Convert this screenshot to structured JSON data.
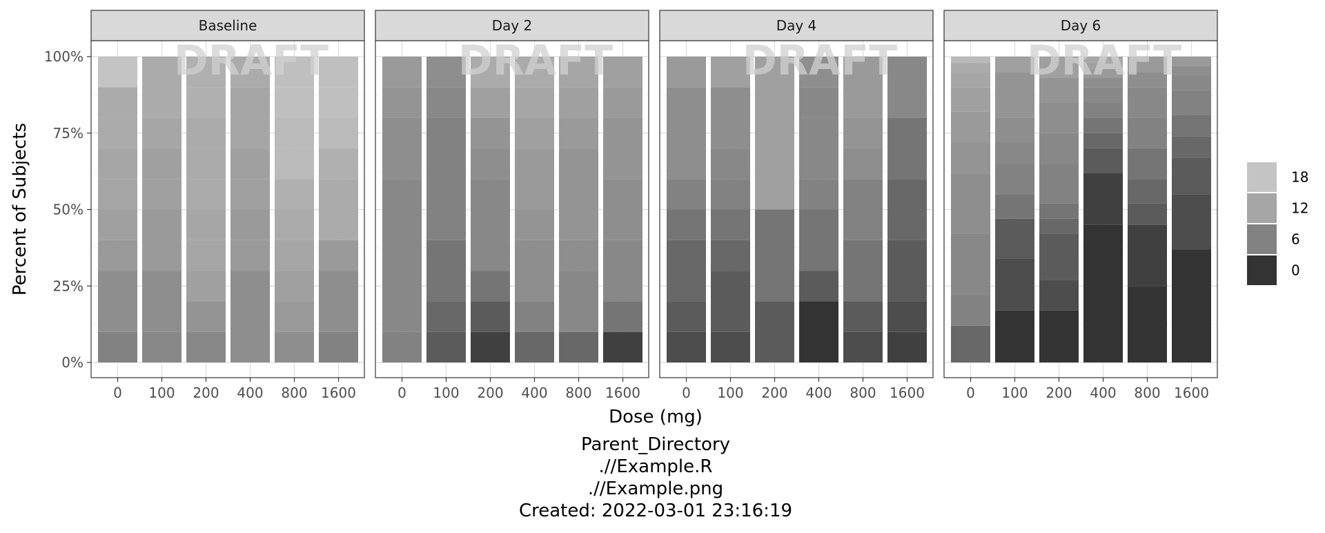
{
  "chart_data": {
    "type": "bar",
    "subtype": "stacked-percent-faceted",
    "facets": [
      "Baseline",
      "Day 2",
      "Day 4",
      "Day 6"
    ],
    "categories": [
      "0",
      "100",
      "200",
      "400",
      "800",
      "1600"
    ],
    "xlabel": "Dose (mg)",
    "ylabel": "Percent of Subjects",
    "ylim": [
      0,
      1
    ],
    "yticks": [
      0,
      0.25,
      0.5,
      0.75,
      1.0
    ],
    "ytick_labels": [
      "0%",
      "25%",
      "50%",
      "75%",
      "100%"
    ],
    "grid": true,
    "legend": {
      "placement": "right",
      "scale_min": 0,
      "scale_max": 20,
      "entries": [
        {
          "label": "18",
          "value": 18,
          "color": "#C4C4C4"
        },
        {
          "label": "12",
          "value": 12,
          "color": "#A6A6A6"
        },
        {
          "label": "6",
          "value": 6,
          "color": "#828282"
        },
        {
          "label": "0",
          "value": 0,
          "color": "#333333"
        }
      ]
    },
    "watermark": "DRAFT",
    "bars": [
      [
        [
          {
            "value": 6,
            "share": 0.1
          },
          {
            "value": 8,
            "share": 0.2
          },
          {
            "value": 10,
            "share": 0.1
          },
          {
            "value": 11,
            "share": 0.1
          },
          {
            "value": 12,
            "share": 0.1
          },
          {
            "value": 12,
            "share": 0.1
          },
          {
            "value": 13,
            "share": 0.1
          },
          {
            "value": 13,
            "share": 0.1
          },
          {
            "value": 18,
            "share": 0.1
          }
        ],
        [
          {
            "value": 7,
            "share": 0.1
          },
          {
            "value": 8,
            "share": 0.2
          },
          {
            "value": 10,
            "share": 0.2
          },
          {
            "value": 11,
            "share": 0.1
          },
          {
            "value": 11,
            "share": 0.1
          },
          {
            "value": 12,
            "share": 0.1
          },
          {
            "value": 13,
            "share": 0.2
          }
        ],
        [
          {
            "value": 7,
            "share": 0.1
          },
          {
            "value": 9,
            "share": 0.1
          },
          {
            "value": 11,
            "share": 0.1
          },
          {
            "value": 12,
            "share": 0.1
          },
          {
            "value": 12,
            "share": 0.1
          },
          {
            "value": 13,
            "share": 0.1
          },
          {
            "value": 13,
            "share": 0.1
          },
          {
            "value": 13,
            "share": 0.1
          },
          {
            "value": 14,
            "share": 0.1
          },
          {
            "value": 14,
            "share": 0.1
          }
        ],
        [
          {
            "value": 8,
            "share": 0.3
          },
          {
            "value": 10,
            "share": 0.1
          },
          {
            "value": 10,
            "share": 0.1
          },
          {
            "value": 11,
            "share": 0.1
          },
          {
            "value": 11,
            "share": 0.1
          },
          {
            "value": 12,
            "share": 0.1
          },
          {
            "value": 12,
            "share": 0.1
          },
          {
            "value": 13,
            "share": 0.1
          }
        ],
        [
          {
            "value": 8,
            "share": 0.1
          },
          {
            "value": 10,
            "share": 0.1
          },
          {
            "value": 11,
            "share": 0.1
          },
          {
            "value": 12,
            "share": 0.1
          },
          {
            "value": 13,
            "share": 0.1
          },
          {
            "value": 14,
            "share": 0.1
          },
          {
            "value": 16,
            "share": 0.1
          },
          {
            "value": 16,
            "share": 0.1
          },
          {
            "value": 17,
            "share": 0.1
          },
          {
            "value": 17,
            "share": 0.1
          }
        ],
        [
          {
            "value": 6,
            "share": 0.1
          },
          {
            "value": 8,
            "share": 0.2
          },
          {
            "value": 10,
            "share": 0.1
          },
          {
            "value": 13,
            "share": 0.1
          },
          {
            "value": 13,
            "share": 0.1
          },
          {
            "value": 14,
            "share": 0.1
          },
          {
            "value": 16,
            "share": 0.1
          },
          {
            "value": 17,
            "share": 0.1
          },
          {
            "value": 17,
            "share": 0.1
          }
        ]
      ],
      [
        [
          {
            "value": 6,
            "share": 0.1
          },
          {
            "value": 7,
            "share": 0.5
          },
          {
            "value": 8,
            "share": 0.2
          },
          {
            "value": 9,
            "share": 0.1
          },
          {
            "value": 10,
            "share": 0.1
          }
        ],
        [
          {
            "value": 3,
            "share": 0.1
          },
          {
            "value": 4,
            "share": 0.1
          },
          {
            "value": 5,
            "share": 0.2
          },
          {
            "value": 6,
            "share": 0.4
          },
          {
            "value": 7,
            "share": 0.1
          },
          {
            "value": 8,
            "share": 0.1
          }
        ],
        [
          {
            "value": 1,
            "share": 0.1
          },
          {
            "value": 3,
            "share": 0.1
          },
          {
            "value": 5,
            "share": 0.1
          },
          {
            "value": 7,
            "share": 0.3
          },
          {
            "value": 8,
            "share": 0.1
          },
          {
            "value": 9,
            "share": 0.1
          },
          {
            "value": 11,
            "share": 0.1
          },
          {
            "value": 13,
            "share": 0.1
          }
        ],
        [
          {
            "value": 4,
            "share": 0.1
          },
          {
            "value": 6,
            "share": 0.1
          },
          {
            "value": 8,
            "share": 0.2
          },
          {
            "value": 9,
            "share": 0.1
          },
          {
            "value": 10,
            "share": 0.2
          },
          {
            "value": 11,
            "share": 0.1
          },
          {
            "value": 12,
            "share": 0.1
          },
          {
            "value": 13,
            "share": 0.1
          }
        ],
        [
          {
            "value": 4,
            "share": 0.1
          },
          {
            "value": 7,
            "share": 0.2
          },
          {
            "value": 8,
            "share": 0.1
          },
          {
            "value": 9,
            "share": 0.3
          },
          {
            "value": 10,
            "share": 0.1
          },
          {
            "value": 11,
            "share": 0.1
          },
          {
            "value": 12,
            "share": 0.1
          }
        ],
        [
          {
            "value": 1,
            "share": 0.1
          },
          {
            "value": 5,
            "share": 0.1
          },
          {
            "value": 7,
            "share": 0.2
          },
          {
            "value": 8,
            "share": 0.2
          },
          {
            "value": 9,
            "share": 0.2
          },
          {
            "value": 10,
            "share": 0.1
          },
          {
            "value": 11,
            "share": 0.1
          }
        ]
      ],
      [
        [
          {
            "value": 2,
            "share": 0.1
          },
          {
            "value": 3,
            "share": 0.1
          },
          {
            "value": 4,
            "share": 0.2
          },
          {
            "value": 5,
            "share": 0.1
          },
          {
            "value": 6,
            "share": 0.1
          },
          {
            "value": 8,
            "share": 0.3
          },
          {
            "value": 10,
            "share": 0.1
          }
        ],
        [
          {
            "value": 2,
            "share": 0.1
          },
          {
            "value": 3,
            "share": 0.2
          },
          {
            "value": 4,
            "share": 0.1
          },
          {
            "value": 5,
            "share": 0.1
          },
          {
            "value": 6,
            "share": 0.1
          },
          {
            "value": 7,
            "share": 0.1
          },
          {
            "value": 8,
            "share": 0.2
          },
          {
            "value": 11,
            "share": 0.1
          }
        ],
        [
          {
            "value": 3,
            "share": 0.2
          },
          {
            "value": 5,
            "share": 0.3
          },
          {
            "value": 11,
            "share": 0.5
          }
        ],
        [
          {
            "value": 0,
            "share": 0.2
          },
          {
            "value": 3,
            "share": 0.1
          },
          {
            "value": 5,
            "share": 0.2
          },
          {
            "value": 6,
            "share": 0.1
          },
          {
            "value": 7,
            "share": 0.2
          },
          {
            "value": 7,
            "share": 0.1
          },
          {
            "value": 8,
            "share": 0.1
          }
        ],
        [
          {
            "value": 2,
            "share": 0.1
          },
          {
            "value": 3,
            "share": 0.1
          },
          {
            "value": 5,
            "share": 0.2
          },
          {
            "value": 6,
            "share": 0.2
          },
          {
            "value": 8,
            "share": 0.1
          },
          {
            "value": 9,
            "share": 0.1
          },
          {
            "value": 10,
            "share": 0.2
          }
        ],
        [
          {
            "value": 1,
            "share": 0.1
          },
          {
            "value": 2,
            "share": 0.1
          },
          {
            "value": 3,
            "share": 0.2
          },
          {
            "value": 4,
            "share": 0.2
          },
          {
            "value": 5,
            "share": 0.2
          },
          {
            "value": 7,
            "share": 0.2
          }
        ]
      ],
      [
        [
          {
            "value": 4,
            "share": 0.12
          },
          {
            "value": 6,
            "share": 0.1
          },
          {
            "value": 7,
            "share": 0.2
          },
          {
            "value": 8,
            "share": 0.2
          },
          {
            "value": 9,
            "share": 0.1
          },
          {
            "value": 10,
            "share": 0.1
          },
          {
            "value": 11,
            "share": 0.08
          },
          {
            "value": 12,
            "share": 0.05
          },
          {
            "value": 13,
            "share": 0.03
          },
          {
            "value": 16,
            "share": 0.02
          }
        ],
        [
          {
            "value": 0,
            "share": 0.17
          },
          {
            "value": 2,
            "share": 0.17
          },
          {
            "value": 3,
            "share": 0.13
          },
          {
            "value": 5,
            "share": 0.08
          },
          {
            "value": 6,
            "share": 0.1
          },
          {
            "value": 7,
            "share": 0.07
          },
          {
            "value": 8,
            "share": 0.08
          },
          {
            "value": 9,
            "share": 0.15
          },
          {
            "value": 11,
            "share": 0.05
          }
        ],
        [
          {
            "value": 0,
            "share": 0.17
          },
          {
            "value": 2,
            "share": 0.1
          },
          {
            "value": 3,
            "share": 0.15
          },
          {
            "value": 4,
            "share": 0.05
          },
          {
            "value": 5,
            "share": 0.05
          },
          {
            "value": 6,
            "share": 0.13
          },
          {
            "value": 7,
            "share": 0.1
          },
          {
            "value": 8,
            "share": 0.1
          },
          {
            "value": 9,
            "share": 0.08
          },
          {
            "value": 11,
            "share": 0.07
          }
        ],
        [
          {
            "value": 0,
            "share": 0.45
          },
          {
            "value": 1,
            "share": 0.17
          },
          {
            "value": 3,
            "share": 0.08
          },
          {
            "value": 4,
            "share": 0.05
          },
          {
            "value": 5,
            "share": 0.05
          },
          {
            "value": 6,
            "share": 0.05
          },
          {
            "value": 7,
            "share": 0.05
          },
          {
            "value": 8,
            "share": 0.03
          },
          {
            "value": 10,
            "share": 0.03
          },
          {
            "value": 11,
            "share": 0.02
          },
          {
            "value": 12,
            "share": 0.02
          }
        ],
        [
          {
            "value": 0,
            "share": 0.25
          },
          {
            "value": 1,
            "share": 0.2
          },
          {
            "value": 3,
            "share": 0.07
          },
          {
            "value": 4,
            "share": 0.08
          },
          {
            "value": 5,
            "share": 0.1
          },
          {
            "value": 6,
            "share": 0.1
          },
          {
            "value": 7,
            "share": 0.1
          },
          {
            "value": 8,
            "share": 0.05
          },
          {
            "value": 10,
            "share": 0.05
          }
        ],
        [
          {
            "value": 0,
            "share": 0.37
          },
          {
            "value": 2,
            "share": 0.18
          },
          {
            "value": 3,
            "share": 0.12
          },
          {
            "value": 4,
            "share": 0.07
          },
          {
            "value": 5,
            "share": 0.07
          },
          {
            "value": 6,
            "share": 0.08
          },
          {
            "value": 7,
            "share": 0.05
          },
          {
            "value": 8,
            "share": 0.03
          },
          {
            "value": 10,
            "share": 0.03
          }
        ]
      ]
    ]
  },
  "caption": {
    "line1": "Parent_Directory",
    "line2": ".//Example.R",
    "line3": ".//Example.png",
    "line4": "Created: 2022-03-01 23:16:19"
  }
}
